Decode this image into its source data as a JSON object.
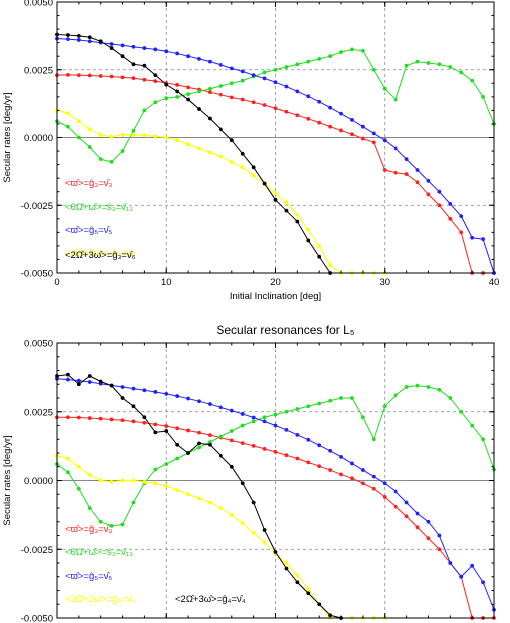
{
  "chart_data": [
    {
      "type": "line",
      "title": "",
      "xlabel": "Initial Inclination [deg]",
      "ylabel": "Secular rates [deg/yr]",
      "xlim": [
        0,
        40
      ],
      "ylim": [
        -0.005,
        0.005
      ],
      "xticks": [
        "0",
        "10",
        "20",
        "30",
        "40"
      ],
      "yticks": [
        "-0.0050",
        "-0.0025",
        "0.0000",
        "0.0025",
        "0.0050"
      ],
      "grid": true,
      "legend_placement": "bottom-left",
      "series": [
        {
          "name": "<ϖ̂>=ĝ₃=ν̂₃",
          "color": "#ff2020",
          "x": [
            0,
            1,
            2,
            3,
            4,
            5,
            6,
            7,
            8,
            9,
            10,
            11,
            12,
            13,
            14,
            15,
            16,
            17,
            18,
            19,
            20,
            21,
            22,
            23,
            24,
            25,
            26,
            27,
            28,
            29,
            30,
            31,
            32,
            33,
            34,
            35,
            36,
            37,
            38,
            39,
            40
          ],
          "y": [
            0.0023,
            0.00231,
            0.0023,
            0.00229,
            0.00227,
            0.00225,
            0.00222,
            0.00219,
            0.00213,
            0.00208,
            0.00201,
            0.00194,
            0.00185,
            0.00177,
            0.00167,
            0.00158,
            0.00148,
            0.0014,
            0.0013,
            0.0012,
            0.00108,
            0.00095,
            0.00082,
            0.00069,
            0.00055,
            0.0004,
            0.00026,
            0.00012,
            -4e-05,
            -0.00018,
            -0.0012,
            -0.0013,
            -0.00135,
            -0.00165,
            -0.0021,
            -0.0025,
            -0.003,
            -0.0035,
            -0.005,
            -0.005,
            -0.005
          ]
        },
        {
          "name": "<6Ω̂+ω̂>=ŝ₃=ν̂₁₃",
          "color": "#20dd20",
          "x": [
            0,
            1,
            2,
            3,
            4,
            5,
            6,
            7,
            8,
            9,
            10,
            11,
            12,
            13,
            14,
            15,
            16,
            17,
            18,
            19,
            20,
            21,
            22,
            23,
            24,
            25,
            26,
            27,
            28,
            29,
            30,
            31,
            32,
            33,
            34,
            35,
            36,
            37,
            38,
            39,
            40
          ],
          "y": [
            0.0006,
            0.0004,
            0.0,
            -0.00035,
            -0.0008,
            -0.0009,
            -0.0005,
            0.00025,
            0.001,
            0.0013,
            0.00145,
            0.0015,
            0.0016,
            0.0017,
            0.0018,
            0.0019,
            0.002,
            0.0021,
            0.00225,
            0.0024,
            0.0025,
            0.0026,
            0.0027,
            0.0028,
            0.0029,
            0.003,
            0.00315,
            0.00325,
            0.0032,
            0.0025,
            0.0018,
            0.0014,
            0.00265,
            0.0028,
            0.00275,
            0.0027,
            0.0026,
            0.0024,
            0.0021,
            0.0015,
            0.0005
          ]
        },
        {
          "name": "<ϖ̂>=ĝ₅=ν̂₅",
          "color": "#2020ff",
          "x": [
            0,
            1,
            2,
            3,
            4,
            5,
            6,
            7,
            8,
            9,
            10,
            11,
            12,
            13,
            14,
            15,
            16,
            17,
            18,
            19,
            20,
            21,
            22,
            23,
            24,
            25,
            26,
            27,
            28,
            29,
            30,
            31,
            32,
            33,
            34,
            35,
            36,
            37,
            38,
            39,
            40
          ],
          "y": [
            0.00365,
            0.00363,
            0.0036,
            0.00355,
            0.0035,
            0.00345,
            0.0034,
            0.00335,
            0.0033,
            0.00325,
            0.00318,
            0.0031,
            0.003,
            0.0029,
            0.0028,
            0.00268,
            0.00255,
            0.00244,
            0.0023,
            0.00218,
            0.00204,
            0.00188,
            0.0017,
            0.00152,
            0.00132,
            0.0011,
            0.00088,
            0.00065,
            0.0004,
            0.00015,
            -0.0001,
            -0.0004,
            -0.0008,
            -0.0012,
            -0.0016,
            -0.002,
            -0.00245,
            -0.0029,
            -0.0037,
            -0.00375,
            -0.005
          ]
        },
        {
          "name": "<3Ω̂+2ω̂>=ĝ₄=ν̂₄",
          "color": "#ffff00",
          "x": [
            0,
            1,
            2,
            3,
            4,
            5,
            6,
            7,
            8,
            9,
            10,
            11,
            12,
            13,
            14,
            15,
            16,
            17,
            18,
            19,
            20,
            21,
            22,
            23,
            24,
            25,
            26,
            27,
            28,
            29,
            30
          ],
          "y": [
            0.001,
            0.0009,
            0.0006,
            0.0003,
            0.0001,
            3e-05,
            0.0001,
            0.0001,
            8e-05,
            5e-05,
            0.0,
            -0.0001,
            -0.00025,
            -0.0004,
            -0.00055,
            -0.0007,
            -0.0009,
            -0.0011,
            -0.0014,
            -0.0017,
            -0.00205,
            -0.0024,
            -0.00285,
            -0.0034,
            -0.004,
            -0.0047,
            -0.005,
            -0.005,
            -0.005,
            -0.005,
            -0.005
          ]
        },
        {
          "name": "<2Ω̂+3ω̂>=ĝ₃=ν̂₆",
          "color": "#000000",
          "x": [
            0,
            1,
            2,
            3,
            4,
            5,
            6,
            7,
            8,
            9,
            10,
            11,
            12,
            13,
            14,
            15,
            16,
            17,
            18,
            19,
            20,
            21,
            22,
            23,
            24,
            25
          ],
          "y": [
            0.0038,
            0.00378,
            0.00375,
            0.0037,
            0.00355,
            0.0033,
            0.003,
            0.0027,
            0.00265,
            0.0023,
            0.00195,
            0.0017,
            0.0014,
            0.00105,
            0.0007,
            0.0003,
            -0.0001,
            -0.0006,
            -0.0011,
            -0.0017,
            -0.0023,
            -0.0027,
            -0.0031,
            -0.0038,
            -0.0044,
            -0.005
          ]
        }
      ]
    },
    {
      "type": "line",
      "title": "Secular resonances for L₅",
      "xlabel": "",
      "ylabel": "Secular rates [deg/yr]",
      "xlim": [
        0,
        40
      ],
      "ylim": [
        -0.005,
        0.005
      ],
      "xticks": [],
      "yticks": [
        "-0.0050",
        "-0.0025",
        "0.0000",
        "0.0025",
        "0.0050"
      ],
      "grid": true,
      "legend_placement": "bottom-left",
      "series": [
        {
          "name": "<ϖ̂>=ĝ₃=ν̂₃",
          "color": "#ff2020",
          "x": [
            0,
            1,
            2,
            3,
            4,
            5,
            6,
            7,
            8,
            9,
            10,
            11,
            12,
            13,
            14,
            15,
            16,
            17,
            18,
            19,
            20,
            21,
            22,
            23,
            24,
            25,
            26,
            27,
            28,
            29,
            30,
            31,
            32,
            33,
            34,
            35,
            36,
            37,
            38,
            39,
            40
          ],
          "y": [
            0.0023,
            0.0023,
            0.00229,
            0.00227,
            0.00225,
            0.00222,
            0.00219,
            0.00215,
            0.0021,
            0.00204,
            0.00198,
            0.0019,
            0.00182,
            0.00174,
            0.00165,
            0.00156,
            0.00146,
            0.00136,
            0.00126,
            0.00115,
            0.00104,
            0.00092,
            0.0008,
            0.00066,
            0.00052,
            0.00038,
            0.00022,
            8e-05,
            -0.0001,
            -0.0003,
            -0.0006,
            -0.00095,
            -0.0013,
            -0.0017,
            -0.0021,
            -0.0025,
            -0.003,
            -0.0035,
            -0.005,
            -0.005,
            -0.005
          ]
        },
        {
          "name": "<6Ω̂+ω̂>=ŝ₃=ν̂₁₃",
          "color": "#20dd20",
          "x": [
            0,
            1,
            2,
            3,
            4,
            5,
            6,
            7,
            8,
            9,
            10,
            11,
            12,
            13,
            14,
            15,
            16,
            17,
            18,
            19,
            20,
            21,
            22,
            23,
            24,
            25,
            26,
            27,
            28,
            29,
            30,
            31,
            32,
            33,
            34,
            35,
            36,
            37,
            38,
            39,
            40
          ],
          "y": [
            0.0006,
            0.0003,
            -0.0003,
            -0.001,
            -0.0015,
            -0.00165,
            -0.0016,
            -0.0008,
            -0.0001,
            0.0004,
            0.0006,
            0.0008,
            0.001,
            0.0012,
            0.0014,
            0.0016,
            0.0018,
            0.002,
            0.00215,
            0.0023,
            0.0024,
            0.0025,
            0.0026,
            0.0027,
            0.0028,
            0.0029,
            0.003,
            0.003,
            0.0023,
            0.0015,
            0.0027,
            0.0031,
            0.0034,
            0.00345,
            0.0034,
            0.0033,
            0.003,
            0.0025,
            0.002,
            0.0015,
            0.0004
          ]
        },
        {
          "name": "<ϖ̂>=ĝ₅=ν̂₅",
          "color": "#2020ff",
          "x": [
            0,
            1,
            2,
            3,
            4,
            5,
            6,
            7,
            8,
            9,
            10,
            11,
            12,
            13,
            14,
            15,
            16,
            17,
            18,
            19,
            20,
            21,
            22,
            23,
            24,
            25,
            26,
            27,
            28,
            29,
            30,
            31,
            32,
            33,
            34,
            35,
            36,
            37,
            38,
            39,
            40
          ],
          "y": [
            0.0037,
            0.00367,
            0.00363,
            0.00358,
            0.00352,
            0.00346,
            0.0034,
            0.00334,
            0.00328,
            0.00322,
            0.00315,
            0.00307,
            0.00298,
            0.00288,
            0.00278,
            0.00266,
            0.00254,
            0.00242,
            0.00229,
            0.00215,
            0.002,
            0.00184,
            0.00166,
            0.00148,
            0.00128,
            0.00108,
            0.00086,
            0.00062,
            0.00038,
            0.00014,
            -0.0001,
            -0.0004,
            -0.0008,
            -0.0012,
            -0.0015,
            -0.002,
            -0.003,
            -0.0035,
            -0.0031,
            -0.0037,
            -0.0047
          ]
        },
        {
          "name": "<3Ω̂+2ω̂>=ĝ₄=ν̂₄",
          "color": "#ffff00",
          "x": [
            0,
            1,
            2,
            3,
            4,
            5,
            6,
            7,
            8,
            9,
            10,
            11,
            12,
            13,
            14,
            15,
            16,
            17,
            18,
            19,
            20,
            21,
            22,
            23,
            24,
            25,
            26,
            27,
            28,
            29,
            30
          ],
          "y": [
            0.0009,
            0.0008,
            0.0005,
            0.0002,
            0.0,
            -5e-05,
            0.0,
            0.0,
            -5e-05,
            -0.0001,
            -0.0002,
            -0.00035,
            -0.0005,
            -0.00065,
            -0.0008,
            -0.001,
            -0.00125,
            -0.00155,
            -0.0019,
            -0.00225,
            -0.00265,
            -0.003,
            -0.00345,
            -0.00395,
            -0.0045,
            -0.005,
            -0.005,
            -0.005,
            -0.005,
            -0.005,
            -0.005
          ]
        },
        {
          "name": "<2Ω̂+3ω̂>=ĝ₄=ν̂₄",
          "color": "#000000",
          "x": [
            0,
            1,
            2,
            3,
            4,
            5,
            6,
            7,
            8,
            9,
            10,
            11,
            12,
            13,
            14,
            15,
            16,
            17,
            18,
            19,
            20,
            21,
            22,
            23,
            24,
            25,
            26
          ],
          "y": [
            0.0038,
            0.00385,
            0.0035,
            0.0038,
            0.0036,
            0.00345,
            0.003,
            0.0027,
            0.0023,
            0.00175,
            0.0018,
            0.0013,
            0.001,
            0.00135,
            0.0013,
            0.0009,
            0.0005,
            -0.0001,
            -0.0008,
            -0.0018,
            -0.0026,
            -0.0032,
            -0.0037,
            -0.0041,
            -0.0045,
            -0.0049,
            -0.005
          ]
        }
      ]
    }
  ]
}
